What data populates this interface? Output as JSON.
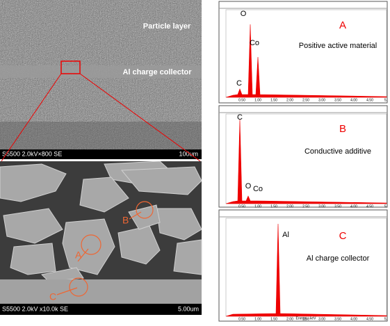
{
  "sem_top": {
    "labels": [
      "Particle layer",
      "Al charge collector"
    ],
    "footer": "S5500 2.0kV×800 SE",
    "scale": "100um"
  },
  "sem_bottom": {
    "markers": [
      "A",
      "B",
      "C"
    ],
    "footer": "S5500 2.0kV x10.0k SE",
    "scale": "5.00um"
  },
  "spectrum_x_ticks": [
    "0.50",
    "1.00",
    "1.50",
    "2.00",
    "2.50",
    "3.00",
    "3.50",
    "4.00",
    "4.50",
    "5."
  ],
  "spectrum_x_label": "Energy - keV",
  "spectra": [
    {
      "label": "A",
      "description": "Positive active material",
      "elements": [
        "O",
        "Co",
        "C"
      ]
    },
    {
      "label": "B",
      "description": "Conductive additive",
      "elements": [
        "C",
        "O",
        "Co"
      ]
    },
    {
      "label": "C",
      "description": "Al charge collector",
      "elements": [
        "Al"
      ]
    }
  ]
}
